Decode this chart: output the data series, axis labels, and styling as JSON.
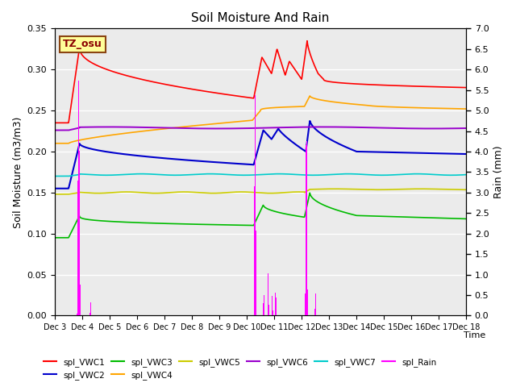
{
  "title": "Soil Moisture And Rain",
  "xlabel": "Time",
  "ylabel_left": "Soil Moisture (m3/m3)",
  "ylabel_right": "Rain (mm)",
  "ylim_left": [
    0.0,
    0.35
  ],
  "ylim_right": [
    0.0,
    7.0
  ],
  "yticks_left": [
    0.0,
    0.05,
    0.1,
    0.15,
    0.2,
    0.25,
    0.3,
    0.35
  ],
  "yticks_right": [
    0.0,
    0.5,
    1.0,
    1.5,
    2.0,
    2.5,
    3.0,
    3.5,
    4.0,
    4.5,
    5.0,
    5.5,
    6.0,
    6.5,
    7.0
  ],
  "xtick_labels": [
    "Dec 3",
    "Dec 4",
    "Dec 5",
    "Dec 6",
    "Dec 7",
    "Dec 8",
    "Dec 9",
    "Dec 10",
    "Dec 11",
    "Dec 12",
    "Dec 13",
    "Dec 14",
    "Dec 15",
    "Dec 16",
    "Dec 17",
    "Dec 18"
  ],
  "annotation_text": "TZ_osu",
  "annotation_color": "#8B0000",
  "annotation_bg": "#FFFF99",
  "annotation_border": "#8B4513",
  "colors": {
    "VWC1": "#FF0000",
    "VWC2": "#0000CC",
    "VWC3": "#00BB00",
    "VWC4": "#FFA500",
    "VWC5": "#CCCC00",
    "VWC6": "#9900CC",
    "VWC7": "#00CCCC",
    "Rain": "#FF00FF"
  },
  "background_color": "#EBEBEB",
  "plot_bg_light": "#F0F0F0",
  "plot_bg_dark": "#E0E0E0"
}
